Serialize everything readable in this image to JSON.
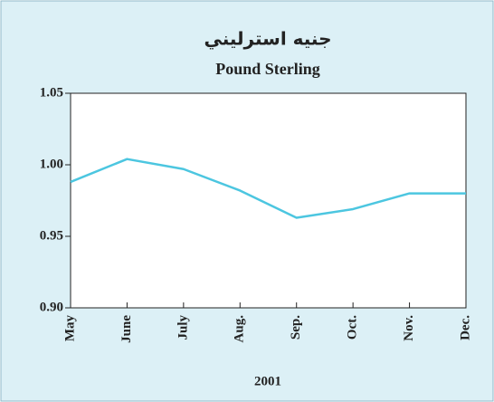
{
  "chart_data": {
    "type": "line",
    "title": "جنيه استرليني",
    "subtitle": "Pound Sterling",
    "x_label": "2001",
    "categories": [
      "May",
      "June",
      "July",
      "Aug.",
      "Sep.",
      "Oct.",
      "Nov.",
      "Dec."
    ],
    "series": [
      {
        "name": "Pound Sterling",
        "color": "#4cc6e0",
        "values": [
          0.988,
          1.004,
          0.997,
          0.982,
          0.963,
          0.969,
          0.98,
          0.98
        ]
      }
    ],
    "ylim": [
      0.9,
      1.05
    ],
    "yticks": [
      {
        "value": 0.9,
        "label": "0.90"
      },
      0.95,
      {
        "value": 1.0,
        "label": "1.00"
      },
      1.05
    ],
    "grid": false
  }
}
